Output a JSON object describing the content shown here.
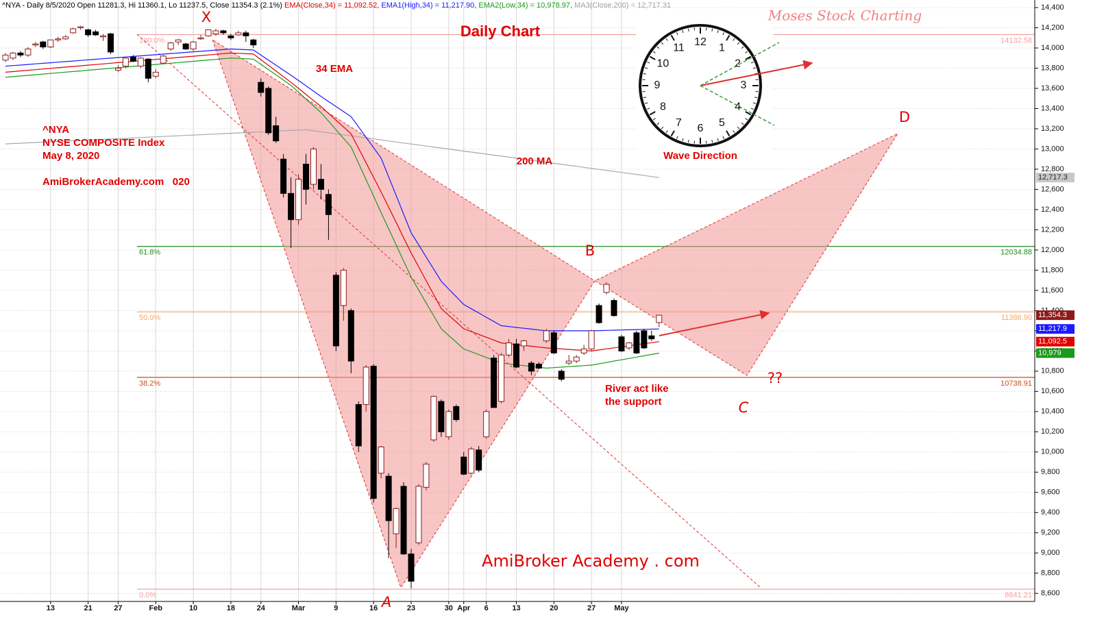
{
  "chart_data": {
    "type": "candlestick",
    "header": [
      {
        "text": "^NYA - Daily 8/5/2020 Open 11281.3, Hi 11360.1, Lo 11237.5, Close 11354.3 (2.1%) ",
        "color": "#000000"
      },
      {
        "text": "EMA(Close,34) = 11,092.52, ",
        "color": "#e00000"
      },
      {
        "text": "EMA1(High,34) = 11,217.90, ",
        "color": "#1a1aff"
      },
      {
        "text": "EMA2(Low,34) = 10,978.97, ",
        "color": "#1a9a1a"
      },
      {
        "text": "MA3(Close,200) = 12,717.31",
        "color": "#a0a0a0"
      }
    ],
    "categories": [
      null,
      null,
      null,
      null,
      null,
      null,
      "13",
      null,
      null,
      null,
      null,
      "21",
      null,
      null,
      null,
      "27",
      null,
      null,
      null,
      null,
      "Feb",
      null,
      null,
      null,
      null,
      "10",
      null,
      null,
      null,
      null,
      "18",
      null,
      null,
      null,
      "24",
      null,
      null,
      null,
      null,
      "Mar",
      null,
      null,
      null,
      null,
      "9",
      null,
      null,
      null,
      null,
      "16",
      null,
      null,
      null,
      null,
      "23",
      null,
      null,
      null,
      null,
      "30",
      null,
      "Apr",
      null,
      null,
      "6",
      null,
      null,
      null,
      "13",
      null,
      null,
      null,
      null,
      "20",
      null,
      null,
      null,
      null,
      "27",
      null,
      null,
      null,
      "May",
      null,
      null,
      null,
      null,
      null
    ],
    "open": [
      13880,
      13900,
      13950,
      13930,
      14030,
      14060,
      14010,
      14080,
      14090,
      14150,
      14200,
      14180,
      14160,
      14110,
      14140,
      13780,
      13820,
      13910,
      13820,
      13890,
      13720,
      13850,
      13990,
      14060,
      14040,
      13990,
      14090,
      14120,
      14140,
      14170,
      14120,
      14130,
      14150,
      14080,
      13660,
      13600,
      13230,
      12900,
      12560,
      12300,
      12850,
      12650,
      12700,
      12550,
      11750,
      11450,
      11400,
      10470,
      10470,
      10850,
      9790,
      9760,
      9190,
      9660,
      8990,
      9100,
      9650,
      10120,
      10500,
      10150,
      10450,
      9950,
      9790,
      10020,
      10150,
      10930,
      10500,
      10960,
      11070,
      11050,
      10880,
      10870,
      11100,
      11180,
      10800,
      10880,
      10900,
      10980,
      11020,
      11450,
      11580,
      11500,
      11140,
      11030,
      11180,
      11200,
      11150,
      11281.3
    ],
    "high": [
      13950,
      13960,
      13970,
      14010,
      14060,
      14070,
      14080,
      14110,
      14130,
      14200,
      14220,
      14190,
      14180,
      14140,
      14150,
      13830,
      13910,
      13930,
      13910,
      13900,
      13790,
      13930,
      14060,
      14090,
      14050,
      14070,
      14130,
      14180,
      14190,
      14180,
      14140,
      14170,
      14170,
      14090,
      13700,
      13620,
      13320,
      12950,
      12720,
      12750,
      12950,
      13020,
      12850,
      12600,
      11780,
      11820,
      11420,
      10500,
      10860,
      10870,
      10060,
      9790,
      9450,
      9700,
      9040,
      9680,
      9900,
      10560,
      10520,
      10420,
      10470,
      10000,
      10050,
      10060,
      10420,
      10960,
      10980,
      11120,
      11120,
      11110,
      10900,
      10890,
      11220,
      11200,
      10820,
      10960,
      10960,
      11060,
      11210,
      11470,
      11680,
      11520,
      11160,
      11090,
      11200,
      11220,
      11200,
      11360.1
    ],
    "low": [
      13860,
      13880,
      13910,
      13910,
      14010,
      13990,
      14000,
      14060,
      14080,
      14140,
      14180,
      14110,
      14120,
      14070,
      13940,
      13760,
      13800,
      13860,
      13800,
      13660,
      13700,
      13840,
      13970,
      14030,
      13980,
      13970,
      14080,
      14110,
      14120,
      14130,
      14080,
      14120,
      14060,
      14000,
      13520,
      13140,
      13060,
      12520,
      12020,
      12250,
      12450,
      12600,
      12500,
      12100,
      11000,
      11300,
      10780,
      10000,
      10400,
      9500,
      9740,
      8950,
      9050,
      8980,
      8650,
      9080,
      9620,
      10100,
      10150,
      10120,
      10300,
      9770,
      9780,
      9800,
      10130,
      10440,
      10480,
      10940,
      10830,
      11000,
      10760,
      10820,
      11080,
      10970,
      10700,
      10860,
      10880,
      10960,
      11000,
      11270,
      11560,
      11340,
      10990,
      11010,
      10970,
      11020,
      11100,
      11237.5
    ],
    "close": [
      13930,
      13950,
      13930,
      13990,
      14040,
      14010,
      14080,
      14090,
      14110,
      14190,
      14210,
      14130,
      14130,
      14120,
      13960,
      13800,
      13900,
      13870,
      13900,
      13700,
      13760,
      13920,
      14050,
      14080,
      13990,
      14060,
      14100,
      14180,
      14170,
      14150,
      14100,
      14150,
      14120,
      14030,
      13560,
      13160,
      13080,
      12560,
      12300,
      12700,
      12600,
      13000,
      12600,
      12350,
      11050,
      11800,
      10900,
      10060,
      10840,
      9540,
      10050,
      9320,
      9440,
      8990,
      8720,
      9660,
      9880,
      10550,
      10200,
      10400,
      10320,
      9780,
      10030,
      9820,
      10400,
      10440,
      10960,
      11080,
      10840,
      11100,
      10800,
      10830,
      11200,
      10980,
      10720,
      10900,
      10940,
      11020,
      11200,
      11280,
      11660,
      11350,
      11000,
      11080,
      10980,
      11030,
      11120,
      11354.3
    ],
    "up_color": "#ffffff",
    "down_color": "#000000",
    "outline_color": "#8b1a1a",
    "series": [
      {
        "color": "#a8a8a8",
        "values": [
          13050,
          13054,
          13057,
          13061,
          13064,
          13068,
          13071,
          13075,
          13078,
          13082,
          13085,
          13089,
          13092,
          13096,
          13099,
          13103,
          13106,
          13110,
          13113,
          13117,
          13120,
          13124,
          13127,
          13131,
          13134,
          13138,
          13141,
          13145,
          13148,
          13152,
          13155,
          13159,
          13162,
          13166,
          13169,
          13173,
          13176,
          13180,
          13183,
          13187,
          13190,
          13180,
          13170,
          13160,
          13150,
          13140,
          13130,
          13120,
          13110,
          13100,
          13090,
          13079,
          13069,
          13059,
          13049,
          13039,
          13029,
          13019,
          13009,
          12999,
          12989,
          12979,
          12969,
          12959,
          12949,
          12939,
          12929,
          12919,
          12909,
          12899,
          12888,
          12878,
          12868,
          12858,
          12848,
          12838,
          12828,
          12818,
          12808,
          12798,
          12788,
          12778,
          12768,
          12758,
          12748,
          12737,
          12727,
          12717.31
        ]
      },
      {
        "color": "#1a1aff",
        "values": [
          13820,
          13826,
          13831,
          13837,
          13843,
          13848,
          13854,
          13860,
          13865,
          13871,
          13877,
          13882,
          13888,
          13894,
          13899,
          13905,
          13911,
          13916,
          13922,
          13928,
          13933,
          13939,
          13945,
          13950,
          13956,
          13962,
          13967,
          13973,
          13979,
          13984,
          13990,
          13987,
          13983,
          13980,
          13930,
          13880,
          13830,
          13780,
          13730,
          13678,
          13625,
          13573,
          13520,
          13470,
          13420,
          13370,
          13320,
          13218,
          13115,
          13013,
          12910,
          12725,
          12540,
          12355,
          12170,
          12050,
          11930,
          11810,
          11690,
          11613,
          11537,
          11460,
          11418,
          11376,
          11334,
          11292,
          11250,
          11242,
          11233,
          11225,
          11217,
          11208,
          11200,
          11200,
          11200,
          11200,
          11200,
          11200,
          11200,
          11202,
          11204,
          11206,
          11208,
          11210,
          11212,
          11214,
          11216,
          11217.9
        ]
      },
      {
        "color": "#e00000",
        "values": [
          13760,
          13766,
          13773,
          13779,
          13785,
          13792,
          13798,
          13804,
          13811,
          13817,
          13823,
          13830,
          13836,
          13842,
          13849,
          13855,
          13861,
          13868,
          13874,
          13880,
          13887,
          13893,
          13899,
          13906,
          13912,
          13918,
          13925,
          13931,
          13937,
          13944,
          13950,
          13947,
          13943,
          13940,
          13884,
          13828,
          13772,
          13716,
          13660,
          13600,
          13540,
          13480,
          13420,
          13353,
          13285,
          13218,
          13150,
          13006,
          12863,
          12719,
          12575,
          12424,
          12273,
          12121,
          11970,
          11833,
          11695,
          11558,
          11420,
          11353,
          11287,
          11220,
          11192,
          11164,
          11136,
          11108,
          11080,
          11072,
          11063,
          11055,
          11047,
          11038,
          11030,
          11025,
          11020,
          11015,
          11010,
          11005,
          11000,
          11010,
          11021,
          11031,
          11041,
          11051,
          11062,
          11072,
          11082,
          11092.52
        ]
      },
      {
        "color": "#1a9a1a",
        "values": [
          13710,
          13716,
          13723,
          13729,
          13735,
          13742,
          13748,
          13754,
          13761,
          13767,
          13773,
          13780,
          13786,
          13792,
          13799,
          13805,
          13811,
          13818,
          13824,
          13830,
          13837,
          13843,
          13849,
          13856,
          13862,
          13868,
          13875,
          13881,
          13887,
          13894,
          13900,
          13897,
          13893,
          13890,
          13838,
          13786,
          13734,
          13682,
          13630,
          13563,
          13495,
          13428,
          13360,
          13275,
          13190,
          13105,
          13020,
          12858,
          12695,
          12533,
          12370,
          12210,
          12050,
          11890,
          11730,
          11603,
          11475,
          11348,
          11220,
          11153,
          11087,
          11020,
          10992,
          10964,
          10936,
          10908,
          10880,
          10872,
          10863,
          10855,
          10847,
          10838,
          10830,
          10835,
          10840,
          10845,
          10850,
          10855,
          10860,
          10873,
          10886,
          10900,
          10913,
          10926,
          10939,
          10952,
          10966,
          10978.97
        ]
      }
    ],
    "ylim": [
      8520,
      14475
    ],
    "yticks": [
      {
        "value": 8600,
        "label": "8,600"
      },
      {
        "value": 8800,
        "label": "8,800"
      },
      {
        "value": 9000,
        "label": "9,000"
      },
      {
        "value": 9200,
        "label": "9,200"
      },
      {
        "value": 9400,
        "label": "9,400"
      },
      {
        "value": 9600,
        "label": "9,600"
      },
      {
        "value": 9800,
        "label": "9,800"
      },
      {
        "value": 10000,
        "label": "10,000"
      },
      {
        "value": 10200,
        "label": "10,200"
      },
      {
        "value": 10400,
        "label": "10,400"
      },
      {
        "value": 10600,
        "label": "10,600"
      },
      {
        "value": 10800,
        "label": "10,800"
      },
      {
        "value": 11000,
        "label": "11,000"
      },
      {
        "value": 11200,
        "label": "11,200"
      },
      {
        "value": 11400,
        "label": "11,400"
      },
      {
        "value": 11600,
        "label": "11,600"
      },
      {
        "value": 11800,
        "label": "11,800"
      },
      {
        "value": 12000,
        "label": "12,000"
      },
      {
        "value": 12200,
        "label": "12,200"
      },
      {
        "value": 12400,
        "label": "12,400"
      },
      {
        "value": 12600,
        "label": "12,600"
      },
      {
        "value": 12800,
        "label": "12,800"
      },
      {
        "value": 13000,
        "label": "13,000"
      },
      {
        "value": 13200,
        "label": "13,200"
      },
      {
        "value": 13400,
        "label": "13,400"
      },
      {
        "value": 13600,
        "label": "13,600"
      },
      {
        "value": 13800,
        "label": "13,800"
      },
      {
        "value": 14000,
        "label": "14,000"
      },
      {
        "value": 14200,
        "label": "14,200"
      },
      {
        "value": 14400,
        "label": "14,400"
      }
    ],
    "grid": true,
    "fib_levels": [
      {
        "pct": "100.0%",
        "value": 14132.58,
        "color": "#f4a0a0"
      },
      {
        "pct": "61.8%",
        "value": 12034.88,
        "color": "#228b22"
      },
      {
        "pct": "50.0%",
        "value": 11386.9,
        "value_label": "11386.90",
        "color": "#f5a860"
      },
      {
        "pct": "38.2%",
        "value": 10738.91,
        "color": "#d24a1a"
      },
      {
        "pct": "0.0%",
        "value": 8641.21,
        "color": "#f4a0a0"
      }
    ],
    "last_values": [
      {
        "value": 12717.31,
        "label": "12,717.3",
        "color": "#c8c8c8",
        "text_color": "#222222"
      },
      {
        "value": 11354.3,
        "label": "11,354.3",
        "color": "#8b1a1a",
        "text_color": "#ffffff"
      },
      {
        "value": 11217.9,
        "label": "11,217.9",
        "color": "#1a1aff",
        "text_color": "#ffffff"
      },
      {
        "value": 11092.52,
        "label": "11,092.5",
        "color": "#e00000",
        "text_color": "#ffffff"
      },
      {
        "value": 10978.97,
        "label": "10,979",
        "color": "#1a9a1a",
        "text_color": "#ffffff"
      }
    ]
  },
  "annotations": {
    "title": "Daily Chart",
    "ema_label": "34 EMA",
    "ticker": "^NYA",
    "index_name": "NYSE COMPOSITE Index",
    "date": "May 8, 2020",
    "site": "AmiBrokerAcademy.com   020",
    "ma_label": "200 MA",
    "river_1": "River act like",
    "river_2": "the support",
    "footer": "AmiBroker Academy . com",
    "watermark": "Moses Stock Charting",
    "points": {
      "X": "X",
      "A": "A",
      "B": "B",
      "C": "C",
      "D": "D",
      "unknown": "??"
    }
  },
  "clock": {
    "numbers": [
      "12",
      "1",
      "2",
      "3",
      "4",
      "5",
      "6",
      "7",
      "8",
      "9",
      "10",
      "11"
    ],
    "caption": "Wave Direction"
  }
}
